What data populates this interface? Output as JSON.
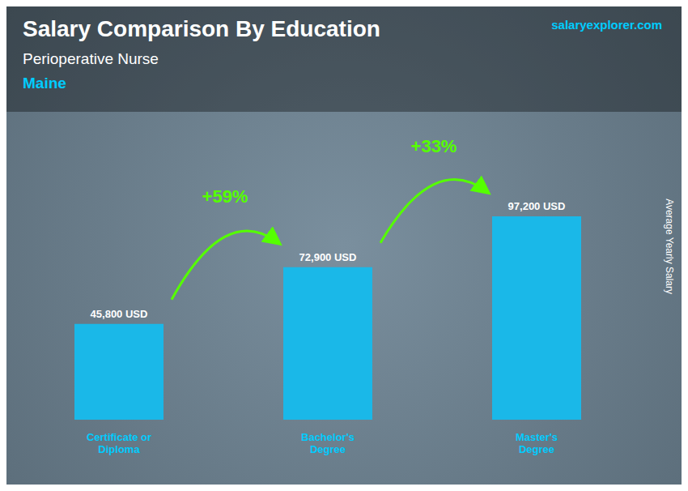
{
  "chart_data": {
    "type": "bar",
    "title": "Salary Comparison By Education",
    "subtitle": "Perioperative Nurse",
    "annotations": [
      "Maine",
      "salaryexplorer.com",
      "+59%",
      "+33%"
    ],
    "ylabel": "Average Yearly Salary",
    "categories": [
      "Certificate or\nDiploma",
      "Bachelor's\nDegree",
      "Master's\nDegree"
    ],
    "values": [
      45800,
      72900,
      97200
    ],
    "value_labels": [
      "45,800 USD",
      "72,900 USD",
      "97,200 USD"
    ],
    "color": "#1ab8e8",
    "ylim": [
      0,
      120000
    ],
    "data_labels": true,
    "tick_labels": "x",
    "grid": false
  }
}
